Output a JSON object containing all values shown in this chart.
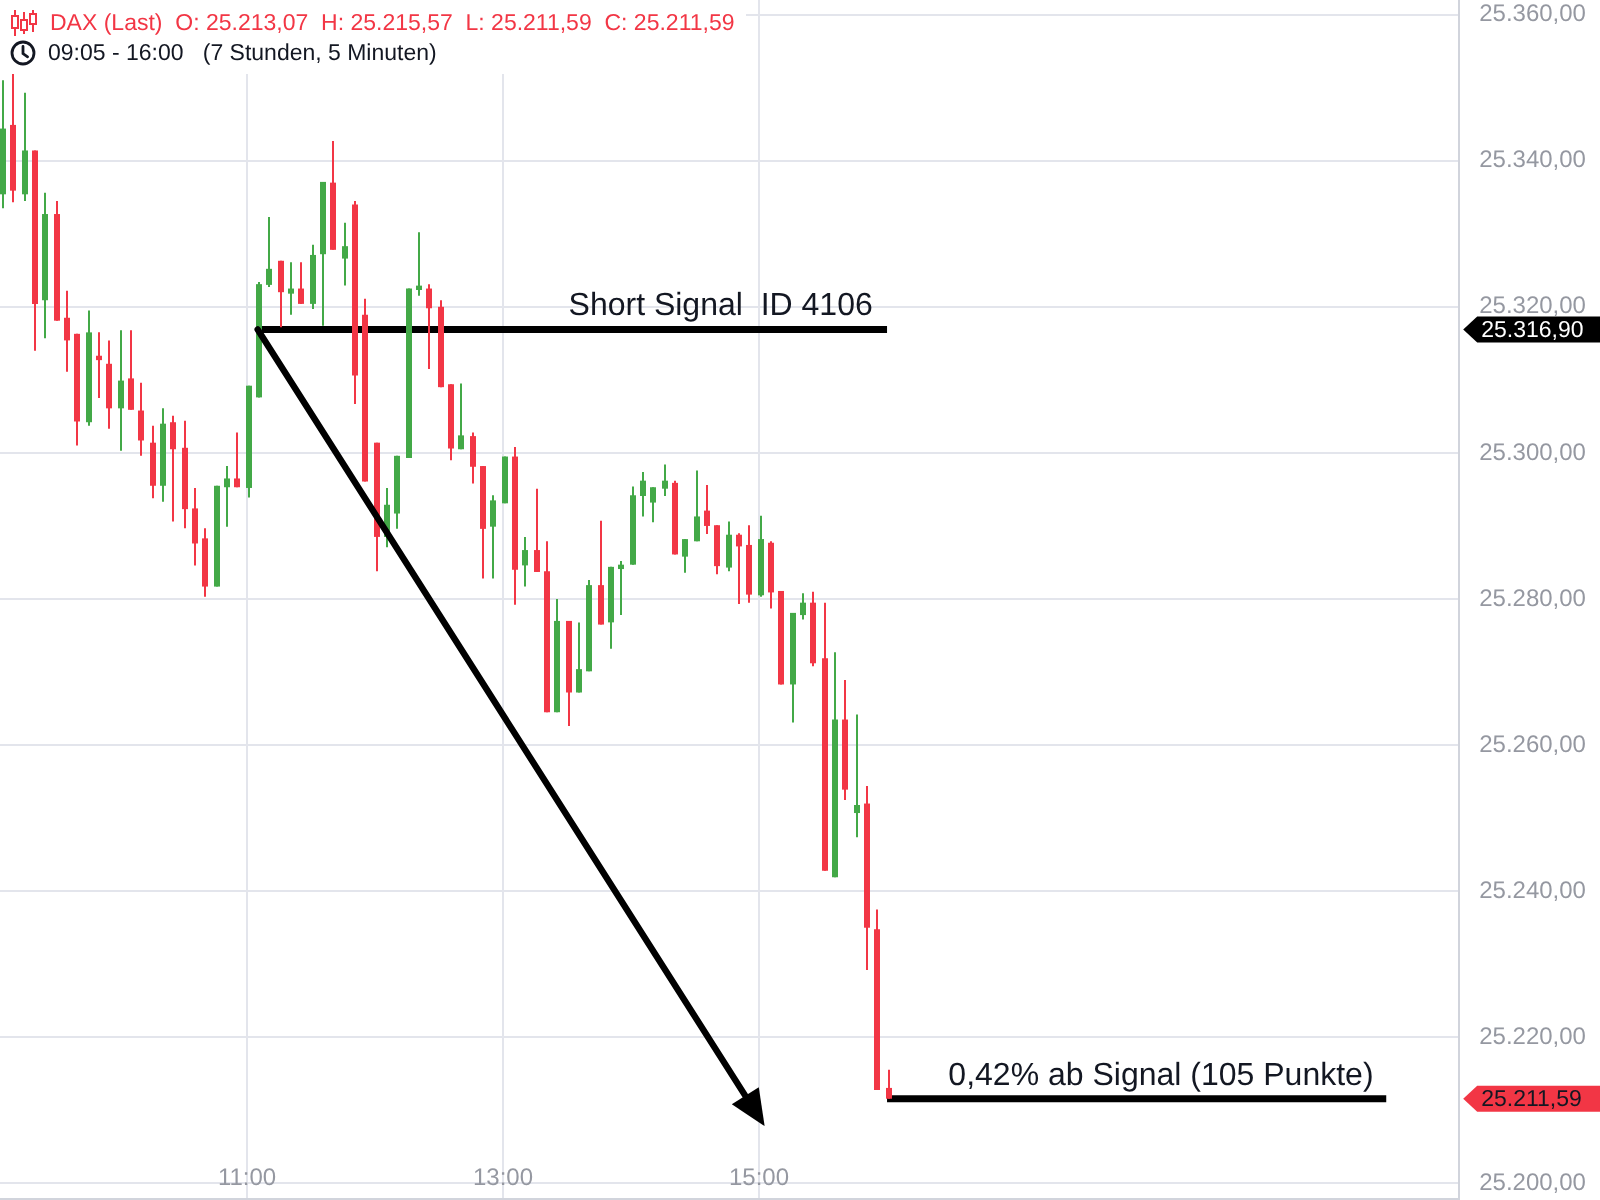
{
  "chart_data": {
    "type": "candlestick",
    "title": "DAX (Last)  O: 25.213,07  H: 25.215,57  L: 25.211,59  C: 25.211,59",
    "subtitle": "09:05 - 16:00   (7 Stunden, 5 Minuten)",
    "series": [
      {
        "x": [
          9.083,
          9.167,
          9.25,
          9.333,
          9.417,
          9.5,
          9.583,
          9.667,
          9.75,
          9.833,
          9.917,
          10,
          10.083,
          10.167,
          10.25,
          10.333,
          10.417,
          10.5,
          10.583,
          10.667,
          10.75,
          10.833,
          10.917,
          11,
          11.083,
          11.167,
          11.25,
          11.333,
          11.417,
          11.5,
          11.583,
          11.667,
          11.75,
          11.833,
          11.917,
          12,
          12.083,
          12.167,
          12.25,
          12.333,
          12.417,
          12.5,
          12.583,
          12.667,
          12.75,
          12.833,
          12.917,
          13,
          13.083,
          13.167,
          13.25,
          13.333,
          13.417,
          13.5,
          13.583,
          13.667,
          13.75,
          13.833,
          13.917,
          14,
          14.083,
          14.167,
          14.25,
          14.333,
          14.417,
          14.5,
          14.583,
          14.667,
          14.75,
          14.833,
          14.917,
          15,
          15.083,
          15.167,
          15.25,
          15.333,
          15.417,
          15.5,
          15.583,
          15.667,
          15.75,
          15.833,
          15.917,
          16
        ],
        "ohlc": [
          [
            25335.4,
            25351.0,
            25333.5,
            25344.4
          ],
          [
            25344.9,
            25352.0,
            25334.3,
            25335.9
          ],
          [
            25335.4,
            25349.3,
            25334.5,
            25341.4
          ],
          [
            25341.4,
            25341.4,
            25314.0,
            25320.4
          ],
          [
            25320.9,
            25335.6,
            25315.7,
            25332.7
          ],
          [
            25332.7,
            25334.5,
            25318.1,
            25318.1
          ],
          [
            25318.5,
            25322.2,
            25311.1,
            25315.4
          ],
          [
            25316.3,
            25316.3,
            25301.0,
            25304.3
          ],
          [
            25304.2,
            25319.5,
            25303.7,
            25316.5
          ],
          [
            25313.3,
            25316.5,
            25307.5,
            25312.7
          ],
          [
            25312.2,
            25315.4,
            25303.3,
            25306.1
          ],
          [
            25306.1,
            25316.8,
            25300.3,
            25309.9
          ],
          [
            25310.2,
            25316.8,
            25305.9,
            25305.9
          ],
          [
            25305.8,
            25309.6,
            25299.6,
            25301.7
          ],
          [
            25301.4,
            25303.7,
            25293.8,
            25295.5
          ],
          [
            25295.5,
            25306.1,
            25293.3,
            25304.0
          ],
          [
            25304.2,
            25305.1,
            25290.6,
            25300.5
          ],
          [
            25300.7,
            25304.4,
            25289.7,
            25292.3
          ],
          [
            25292.4,
            25295.2,
            25284.6,
            25287.6
          ],
          [
            25288.3,
            25289.7,
            25280.3,
            25281.7
          ],
          [
            25281.7,
            25295.5,
            25281.7,
            25295.5
          ],
          [
            25295.3,
            25298.2,
            25289.9,
            25296.5
          ],
          [
            25296.5,
            25302.8,
            25295.3,
            25295.3
          ],
          [
            25295.2,
            25309.2,
            25293.9,
            25309.2
          ],
          [
            25307.6,
            25323.4,
            25307.6,
            25323.1
          ],
          [
            25323.0,
            25332.3,
            25322.7,
            25325.2
          ],
          [
            25326.3,
            25326.3,
            25317.2,
            25322.0
          ],
          [
            25321.8,
            25326.1,
            25318.9,
            25322.5
          ],
          [
            25322.5,
            25326.1,
            25320.4,
            25320.4
          ],
          [
            25320.4,
            25328.5,
            25319.7,
            25327.1
          ],
          [
            25327.2,
            25337.1,
            25317.4,
            25337.1
          ],
          [
            25337.0,
            25342.7,
            25327.8,
            25327.8
          ],
          [
            25326.6,
            25331.5,
            25322.9,
            25328.3
          ],
          [
            25334.0,
            25334.5,
            25306.7,
            25310.6
          ],
          [
            25318.9,
            25321.1,
            25296.1,
            25296.1
          ],
          [
            25301.4,
            25301.4,
            25283.8,
            25288.5
          ],
          [
            25288.5,
            25295.2,
            25287.1,
            25292.9
          ],
          [
            25291.7,
            25299.6,
            25289.6,
            25299.6
          ],
          [
            25299.3,
            25322.5,
            25299.3,
            25322.5
          ],
          [
            25322.3,
            25330.2,
            25321.5,
            25322.9
          ],
          [
            25322.5,
            25323.1,
            25311.5,
            25319.8
          ],
          [
            25320.0,
            25320.9,
            25309.0,
            25309.0
          ],
          [
            25309.4,
            25309.4,
            25299.0,
            25300.6
          ],
          [
            25300.5,
            25309.5,
            25300.5,
            25302.4
          ],
          [
            25302.3,
            25302.8,
            25295.8,
            25298.1
          ],
          [
            25298.2,
            25298.2,
            25282.8,
            25289.6
          ],
          [
            25289.9,
            25294.2,
            25282.8,
            25293.5
          ],
          [
            25293.1,
            25299.5,
            25293.1,
            25299.5
          ],
          [
            25299.5,
            25300.8,
            25279.2,
            25284.0
          ],
          [
            25284.6,
            25288.5,
            25281.7,
            25286.7
          ],
          [
            25286.7,
            25295.1,
            25283.7,
            25283.7
          ],
          [
            25283.8,
            25287.9,
            25264.5,
            25264.5
          ],
          [
            25264.5,
            25280.0,
            25264.5,
            25277.0
          ],
          [
            25277.0,
            25277.0,
            25262.6,
            25267.2
          ],
          [
            25267.2,
            25276.8,
            25267.2,
            25270.4
          ],
          [
            25270.1,
            25282.6,
            25270.1,
            25281.9
          ],
          [
            25281.9,
            25290.7,
            25276.5,
            25276.5
          ],
          [
            25276.8,
            25284.4,
            25273.2,
            25284.4
          ],
          [
            25284.1,
            25285.2,
            25277.8,
            25284.7
          ],
          [
            25284.7,
            25295.4,
            25284.7,
            25294.2
          ],
          [
            25294.1,
            25297.4,
            25291.3,
            25296.2
          ],
          [
            25293.2,
            25295.3,
            25290.5,
            25295.3
          ],
          [
            25295.1,
            25298.4,
            25294.1,
            25296.2
          ],
          [
            25295.9,
            25296.2,
            25286.1,
            25286.1
          ],
          [
            25285.8,
            25288.2,
            25283.6,
            25288.2
          ],
          [
            25287.9,
            25297.6,
            25287.9,
            25291.3
          ],
          [
            25292.1,
            25295.6,
            25288.9,
            25290.0
          ],
          [
            25290.1,
            25290.1,
            25283.4,
            25284.5
          ],
          [
            25284.3,
            25290.6,
            25283.8,
            25288.8
          ],
          [
            25288.8,
            25289.0,
            25279.3,
            25287.2
          ],
          [
            25287.4,
            25290.1,
            25279.5,
            25280.6
          ],
          [
            25280.5,
            25291.4,
            25280.3,
            25288.2
          ],
          [
            25287.7,
            25287.9,
            25278.7,
            25280.9
          ],
          [
            25281.1,
            25281.1,
            25268.3,
            25268.3
          ],
          [
            25268.3,
            25278.1,
            25263.1,
            25278.1
          ],
          [
            25277.8,
            25280.8,
            25277.2,
            25279.5
          ],
          [
            25279.5,
            25281.0,
            25270.8,
            25271.2
          ],
          [
            25271.9,
            25279.5,
            25242.8,
            25242.8
          ],
          [
            25241.9,
            25272.7,
            25241.9,
            25263.5
          ],
          [
            25263.5,
            25268.9,
            25252.5,
            25253.9
          ],
          [
            25250.7,
            25264.2,
            25247.4,
            25251.8
          ],
          [
            25252.0,
            25254.4,
            25229.2,
            25235.0
          ],
          [
            25234.8,
            25237.5,
            25212.8,
            25212.8
          ],
          [
            25213.07,
            25215.57,
            25211.59,
            25211.59
          ]
        ],
        "colors": [
          "#43a947",
          "#f23645",
          "#43a947",
          "#f23645",
          "#43a947",
          "#f23645",
          "#f23645",
          "#f23645",
          "#43a947",
          "#f23645",
          "#f23645",
          "#43a947",
          "#f23645",
          "#f23645",
          "#f23645",
          "#43a947",
          "#f23645",
          "#f23645",
          "#f23645",
          "#f23645",
          "#43a947",
          "#43a947",
          "#f23645",
          "#43a947",
          "#43a947",
          "#43a947",
          "#f23645",
          "#43a947",
          "#f23645",
          "#43a947",
          "#43a947",
          "#f23645",
          "#43a947",
          "#f23645",
          "#f23645",
          "#f23645",
          "#43a947",
          "#43a947",
          "#43a947",
          "#43a947",
          "#f23645",
          "#f23645",
          "#f23645",
          "#43a947",
          "#f23645",
          "#f23645",
          "#43a947",
          "#43a947",
          "#f23645",
          "#43a947",
          "#f23645",
          "#f23645",
          "#43a947",
          "#f23645",
          "#43a947",
          "#43a947",
          "#f23645",
          "#43a947",
          "#43a947",
          "#43a947",
          "#43a947",
          "#43a947",
          "#43a947",
          "#f23645",
          "#43a947",
          "#43a947",
          "#f23645",
          "#f23645",
          "#43a947",
          "#f23645",
          "#f23645",
          "#43a947",
          "#f23645",
          "#f23645",
          "#43a947",
          "#43a947",
          "#f23645",
          "#f23645",
          "#43a947",
          "#f23645",
          "#43a947",
          "#f23645",
          "#f23645",
          "#f23645"
        ]
      },
      {
        "type": "line",
        "x": [
          11.083,
          16
        ],
        "values": [
          25316.9,
          25316.9
        ],
        "color": "#000000"
      },
      {
        "type": "line",
        "x": [
          16,
          19.9
        ],
        "values": [
          25211.59,
          25211.59
        ],
        "color": "#000000"
      }
    ],
    "xlim": [
      9.07,
      20.47
    ],
    "xticks": [
      {
        "value": 11,
        "label": "11:00"
      },
      {
        "value": 13,
        "label": "13:00"
      },
      {
        "value": 15,
        "label": "15:00"
      }
    ],
    "ylim": [
      25198,
      25362
    ],
    "yticks": [
      {
        "value": 25200,
        "label": "25.200,00"
      },
      {
        "value": 25220,
        "label": "25.220,00"
      },
      {
        "value": 25240,
        "label": "25.240,00"
      },
      {
        "value": 25260,
        "label": "25.260,00"
      },
      {
        "value": 25280,
        "label": "25.280,00"
      },
      {
        "value": 25300,
        "label": "25.300,00"
      },
      {
        "value": 25320,
        "label": "25.320,00"
      },
      {
        "value": 25340,
        "label": "25.340,00"
      },
      {
        "value": 25360,
        "label": "25.360,00"
      }
    ],
    "grid": true,
    "annotations": [
      {
        "text": "Short Signal  ID 4106",
        "x": 14.7,
        "y": 25316.9
      },
      {
        "text": "0,42% ab Signal (105 Punkte)",
        "x": 18.14,
        "y": 25211.59
      },
      "25.316,90",
      "25.211,59"
    ]
  }
}
